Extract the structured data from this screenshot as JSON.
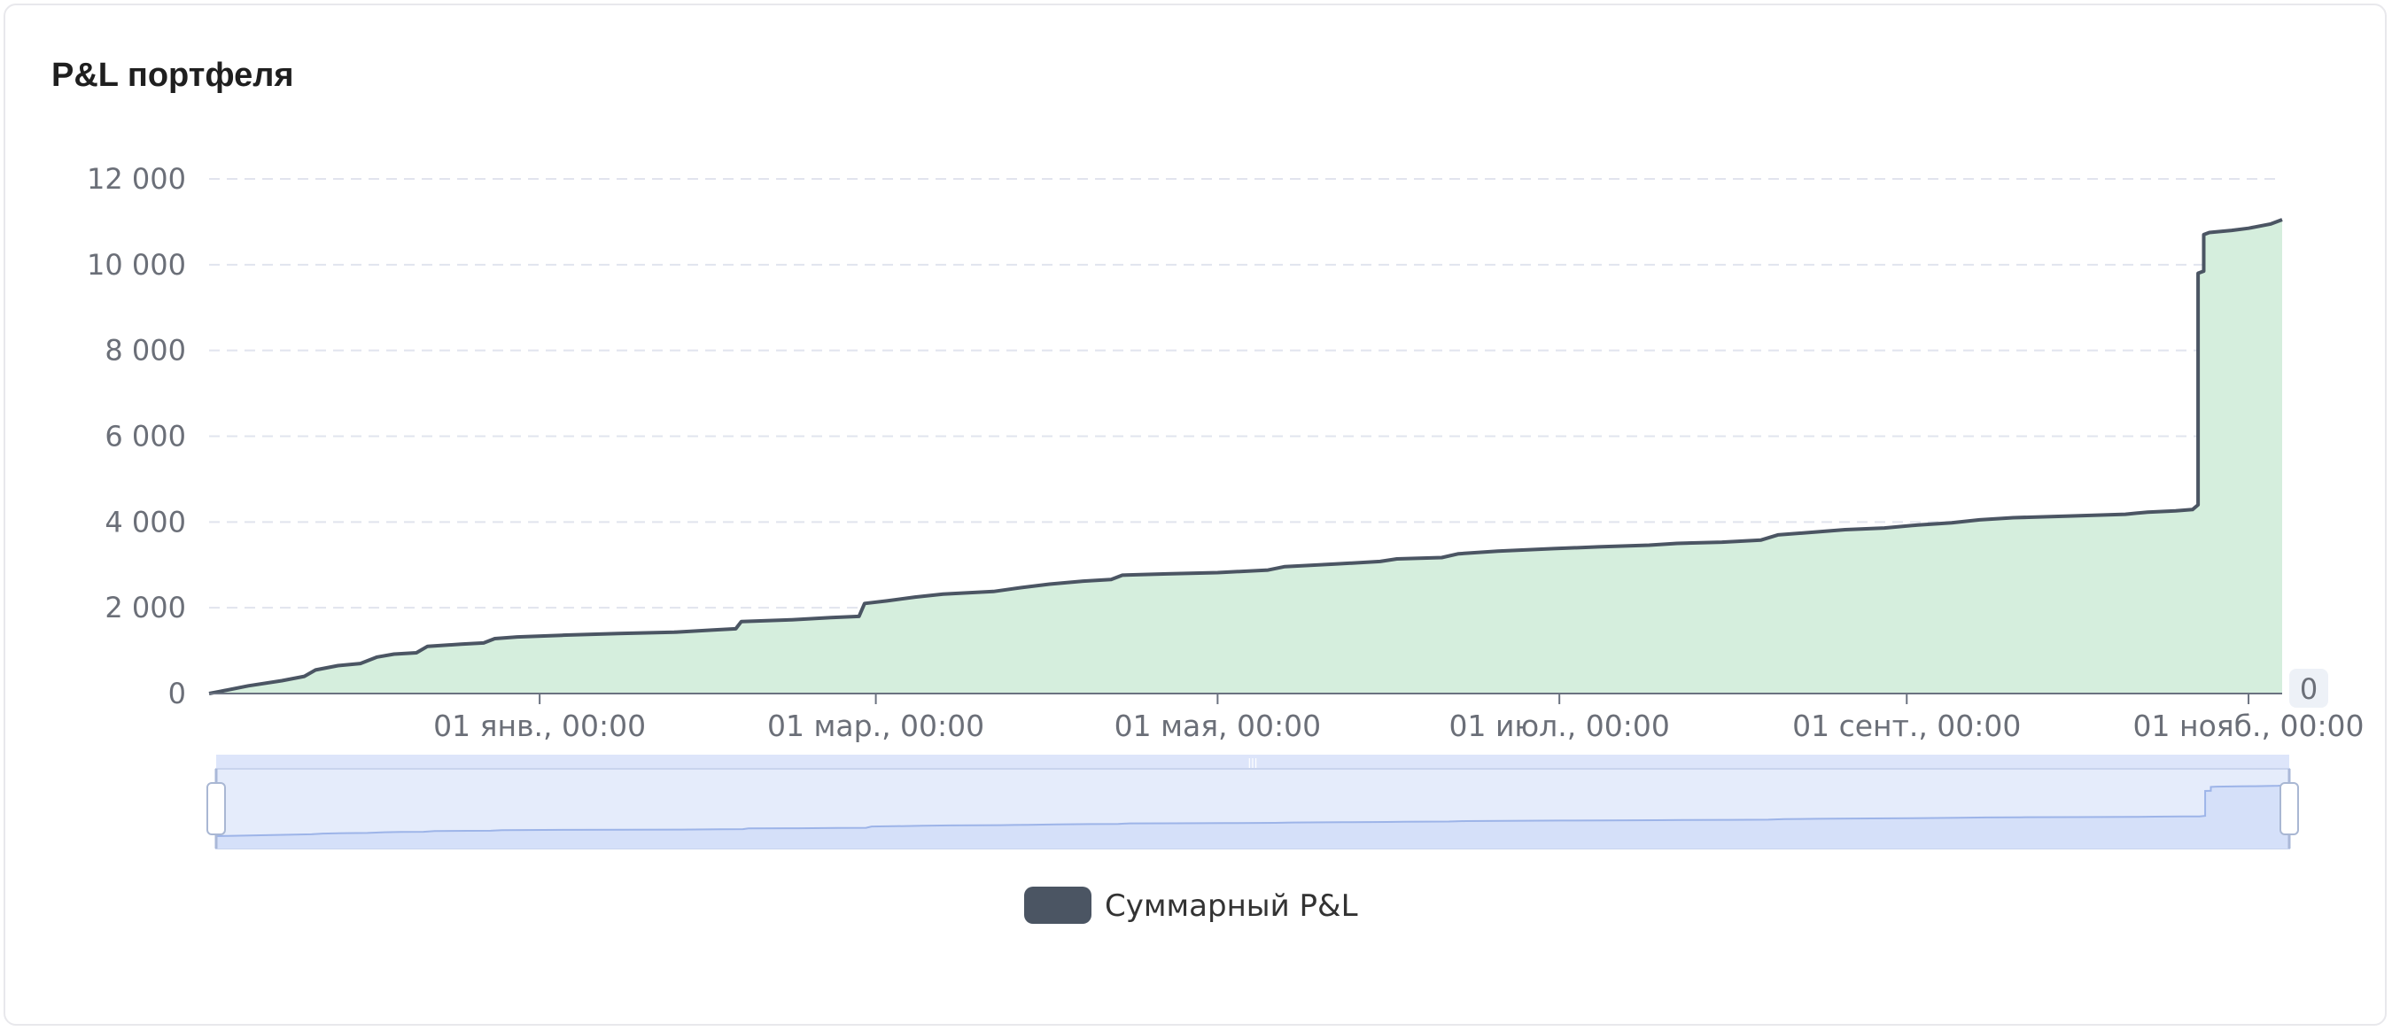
{
  "card": {
    "title": "P&L портфеля"
  },
  "chart_data": {
    "type": "area",
    "title": "P&L портфеля",
    "xlabel": "",
    "ylabel": "",
    "x_type": "date",
    "xlim": [
      "2023-11-03",
      "2024-11-07"
    ],
    "ylim": [
      0,
      12000
    ],
    "y_ticks": [
      "0",
      "2 000",
      "4 000",
      "6 000",
      "8 000",
      "10 000",
      "12 000"
    ],
    "x_ticks": [
      {
        "date": "2024-01-01",
        "label": "01 янв., 00:00"
      },
      {
        "date": "2024-03-01",
        "label": "01 мар., 00:00"
      },
      {
        "date": "2024-05-01",
        "label": "01 мая, 00:00"
      },
      {
        "date": "2024-07-01",
        "label": "01 июл., 00:00"
      },
      {
        "date": "2024-09-01",
        "label": "01 сент., 00:00"
      },
      {
        "date": "2024-11-01",
        "label": "01 нояб., 00:00"
      }
    ],
    "grid": true,
    "legend_position": "bottom",
    "series": [
      {
        "name": "Суммарный P&L",
        "line_color": "#4b5563",
        "fill_color": "#d5eedd",
        "points": [
          [
            "2023-11-03",
            0
          ],
          [
            "2023-11-05",
            50
          ],
          [
            "2023-11-10",
            180
          ],
          [
            "2023-11-16",
            300
          ],
          [
            "2023-11-20",
            400
          ],
          [
            "2023-11-22",
            550
          ],
          [
            "2023-11-26",
            650
          ],
          [
            "2023-11-30",
            700
          ],
          [
            "2023-12-03",
            850
          ],
          [
            "2023-12-06",
            920
          ],
          [
            "2023-12-10",
            950
          ],
          [
            "2023-12-12",
            1100
          ],
          [
            "2023-12-18",
            1150
          ],
          [
            "2023-12-22",
            1180
          ],
          [
            "2023-12-24",
            1280
          ],
          [
            "2023-12-28",
            1320
          ],
          [
            "2024-01-05",
            1360
          ],
          [
            "2024-01-15",
            1400
          ],
          [
            "2024-01-25",
            1430
          ],
          [
            "2024-02-01",
            1480
          ],
          [
            "2024-02-05",
            1510
          ],
          [
            "2024-02-06",
            1680
          ],
          [
            "2024-02-15",
            1720
          ],
          [
            "2024-02-22",
            1770
          ],
          [
            "2024-02-27",
            1800
          ],
          [
            "2024-02-28",
            2100
          ],
          [
            "2024-03-03",
            2160
          ],
          [
            "2024-03-08",
            2250
          ],
          [
            "2024-03-13",
            2320
          ],
          [
            "2024-03-22",
            2380
          ],
          [
            "2024-03-27",
            2470
          ],
          [
            "2024-04-01",
            2550
          ],
          [
            "2024-04-07",
            2620
          ],
          [
            "2024-04-12",
            2660
          ],
          [
            "2024-04-14",
            2760
          ],
          [
            "2024-04-22",
            2790
          ],
          [
            "2024-05-01",
            2820
          ],
          [
            "2024-05-10",
            2880
          ],
          [
            "2024-05-13",
            2960
          ],
          [
            "2024-05-22",
            3020
          ],
          [
            "2024-05-30",
            3080
          ],
          [
            "2024-06-02",
            3140
          ],
          [
            "2024-06-10",
            3170
          ],
          [
            "2024-06-13",
            3260
          ],
          [
            "2024-06-20",
            3320
          ],
          [
            "2024-06-30",
            3380
          ],
          [
            "2024-07-08",
            3420
          ],
          [
            "2024-07-17",
            3460
          ],
          [
            "2024-07-22",
            3500
          ],
          [
            "2024-07-30",
            3530
          ],
          [
            "2024-08-06",
            3580
          ],
          [
            "2024-08-09",
            3700
          ],
          [
            "2024-08-15",
            3760
          ],
          [
            "2024-08-21",
            3820
          ],
          [
            "2024-08-28",
            3860
          ],
          [
            "2024-09-03",
            3930
          ],
          [
            "2024-09-09",
            3980
          ],
          [
            "2024-09-14",
            4050
          ],
          [
            "2024-09-20",
            4100
          ],
          [
            "2024-09-30",
            4140
          ],
          [
            "2024-10-10",
            4180
          ],
          [
            "2024-10-14",
            4230
          ],
          [
            "2024-10-19",
            4260
          ],
          [
            "2024-10-22",
            4290
          ],
          [
            "2024-10-23",
            4400
          ],
          [
            "2024-10-23",
            9800
          ],
          [
            "2024-10-24",
            9850
          ],
          [
            "2024-10-24",
            10700
          ],
          [
            "2024-10-25",
            10750
          ],
          [
            "2024-10-29",
            10800
          ],
          [
            "2024-11-01",
            10850
          ],
          [
            "2024-11-05",
            10950
          ],
          [
            "2024-11-07",
            11050
          ]
        ]
      }
    ]
  },
  "zoom": {
    "right_value_label": "0",
    "start_fraction": 0.0,
    "end_fraction": 1.0
  },
  "colors": {
    "line": "#4b5563",
    "area": "#d5eedd",
    "grid": "#e1e4ee",
    "slider_fill": "#e5ecfb",
    "slider_selected": "#d5e0f9",
    "slider_border": "#c9d4ee"
  },
  "legend": {
    "items": [
      {
        "label": "Суммарный P&L",
        "color": "#4b5563"
      }
    ]
  }
}
